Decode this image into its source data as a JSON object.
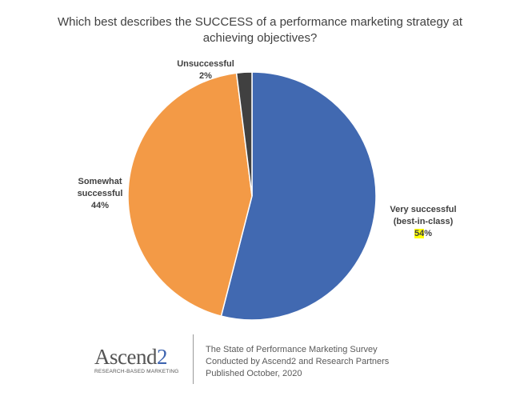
{
  "chart_data": {
    "type": "pie",
    "title": "Which best describes the SUCCESS of a performance marketing strategy at achieving objectives?",
    "slices": [
      {
        "label": "Very successful (best-in-class)",
        "value": 54,
        "display": "54%",
        "color": "#4169b1"
      },
      {
        "label": "Somewhat successful",
        "value": 44,
        "display": "44%",
        "color": "#f39a46"
      },
      {
        "label": "Unsuccessful",
        "value": 2,
        "display": "2%",
        "color": "#404040"
      }
    ],
    "start_angle_deg": 0,
    "direction": "clockwise",
    "legend": "none"
  },
  "labels": {
    "unsuccessful": {
      "name": "Unsuccessful",
      "value": "2%"
    },
    "somewhat": {
      "line1": "Somewhat",
      "line2": "successful",
      "value": "44%"
    },
    "very": {
      "line1": "Very successful",
      "line2": "(best-in-class)",
      "value_number": "54",
      "value_suffix": "%"
    }
  },
  "footer": {
    "logo_main": "Ascend",
    "logo_accent": "2",
    "logo_tagline": "RESEARCH-BASED MARKETING",
    "lines": [
      "The State of Performance Marketing Survey",
      "Conducted by Ascend2 and Research Partners",
      "Published October, 2020"
    ]
  }
}
